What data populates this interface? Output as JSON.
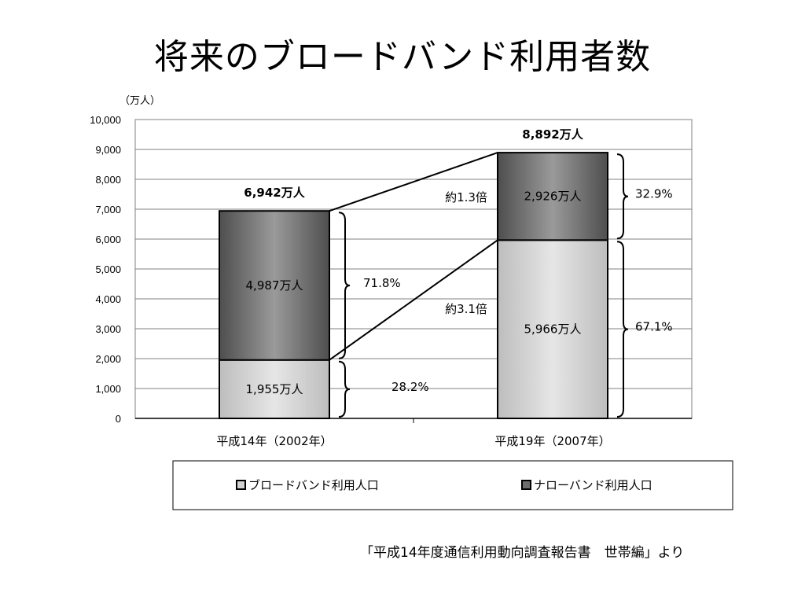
{
  "title": "将来のブロードバンド利用者数",
  "source": "「平成14年度通信利用動向調査報告書　世帯編」より",
  "colors": {
    "broadband": "#d2d2d2",
    "narrowband": "#6e6e6e",
    "grid": "#808080"
  },
  "chart_data": {
    "type": "bar",
    "stacked": true,
    "unit_label": "（万人）",
    "ylim": [
      0,
      10000
    ],
    "yticks": [
      "0",
      "1,000",
      "2,000",
      "3,000",
      "4,000",
      "5,000",
      "6,000",
      "7,000",
      "8,000",
      "9,000",
      "10,000"
    ],
    "categories": [
      "平成14年（2002年）",
      "平成19年（2007年）"
    ],
    "series": [
      {
        "name": "ブロードバンド利用人口",
        "values": [
          1955,
          5966
        ],
        "labels": [
          "1,955万人",
          "5,966万人"
        ],
        "percents": [
          "28.2%",
          "67.1%"
        ]
      },
      {
        "name": "ナローバンド利用人口",
        "values": [
          4987,
          2926
        ],
        "labels": [
          "4,987万人",
          "2,926万人"
        ],
        "percents": [
          "71.8%",
          "32.9%"
        ]
      }
    ],
    "totals": [
      6942,
      8892
    ],
    "total_labels": [
      "6,942万人",
      "8,892万人"
    ],
    "growth_labels": {
      "total": "約1.3倍",
      "broadband": "約3.1倍"
    },
    "legend": [
      "ブロードバンド利用人口",
      "ナローバンド利用人口"
    ],
    "grid": true
  }
}
